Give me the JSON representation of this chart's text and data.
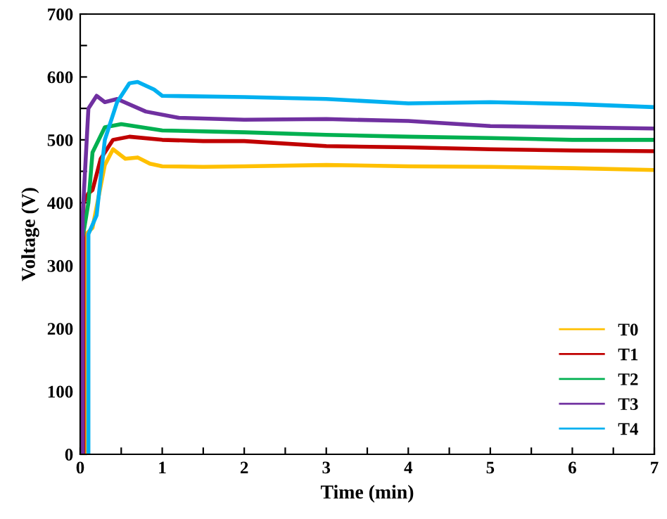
{
  "chart_data": {
    "type": "line",
    "xlabel": "Time (min)",
    "ylabel": "Voltage (V)",
    "xlim": [
      0,
      7
    ],
    "ylim": [
      0,
      700
    ],
    "xticks": [
      0,
      {
        "value": 0.5,
        "label": null
      },
      1,
      {
        "value": 1.5,
        "label": null
      },
      2,
      {
        "value": 2.5,
        "label": null
      },
      3,
      {
        "value": 3.5,
        "label": null
      },
      4,
      {
        "value": 4.5,
        "label": null
      },
      5,
      {
        "value": 5.5,
        "label": null
      },
      6,
      {
        "value": 6.5,
        "label": null
      },
      7
    ],
    "yticks": [
      0,
      {
        "value": 50,
        "label": null
      },
      100,
      {
        "value": 150,
        "label": null
      },
      200,
      {
        "value": 250,
        "label": null
      },
      300,
      {
        "value": 350,
        "label": null
      },
      400,
      {
        "value": 450,
        "label": null
      },
      500,
      {
        "value": 550,
        "label": null
      },
      600,
      {
        "value": 650,
        "label": null
      },
      700
    ],
    "grid": false,
    "legend": "bottom right",
    "marker": "none",
    "line_style": "solid",
    "series": [
      {
        "name": "T0",
        "color": "#ffc000",
        "x": [
          0.07,
          0.07,
          0.15,
          0.3,
          0.4,
          0.55,
          0.7,
          0.85,
          1,
          1.5,
          2,
          3,
          4,
          5,
          6,
          7
        ],
        "values": [
          0,
          350,
          360,
          460,
          485,
          470,
          472,
          462,
          458,
          457,
          458,
          460,
          458,
          457,
          455,
          452
        ]
      },
      {
        "name": "T1",
        "color": "#c00000",
        "x": [
          0.04,
          0.04,
          0.1,
          0.15,
          0.25,
          0.4,
          0.6,
          1,
          1.5,
          2,
          3,
          4,
          5,
          6,
          7
        ],
        "values": [
          0,
          400,
          415,
          420,
          470,
          500,
          505,
          500,
          498,
          498,
          490,
          488,
          485,
          483,
          482
        ]
      },
      {
        "name": "T2",
        "color": "#00b050",
        "x": [
          0.02,
          0.02,
          0.05,
          0.1,
          0.15,
          0.3,
          0.5,
          1,
          2,
          3,
          4,
          5,
          6,
          7
        ],
        "values": [
          0,
          340,
          360,
          400,
          480,
          520,
          525,
          515,
          512,
          508,
          505,
          503,
          500,
          500
        ]
      },
      {
        "name": "T3",
        "color": "#7030a0",
        "x": [
          0.03,
          0.03,
          0.1,
          0.2,
          0.3,
          0.45,
          0.8,
          1.2,
          2,
          3,
          4,
          5,
          6,
          7
        ],
        "values": [
          0,
          380,
          550,
          570,
          560,
          565,
          545,
          535,
          532,
          533,
          530,
          522,
          520,
          518
        ]
      },
      {
        "name": "T4",
        "color": "#00b0f0",
        "x": [
          0.1,
          0.1,
          0.2,
          0.3,
          0.45,
          0.6,
          0.7,
          0.9,
          1,
          2,
          3,
          4,
          5,
          6,
          7
        ],
        "values": [
          0,
          350,
          380,
          500,
          560,
          590,
          592,
          580,
          570,
          568,
          565,
          558,
          560,
          557,
          552
        ]
      }
    ]
  }
}
